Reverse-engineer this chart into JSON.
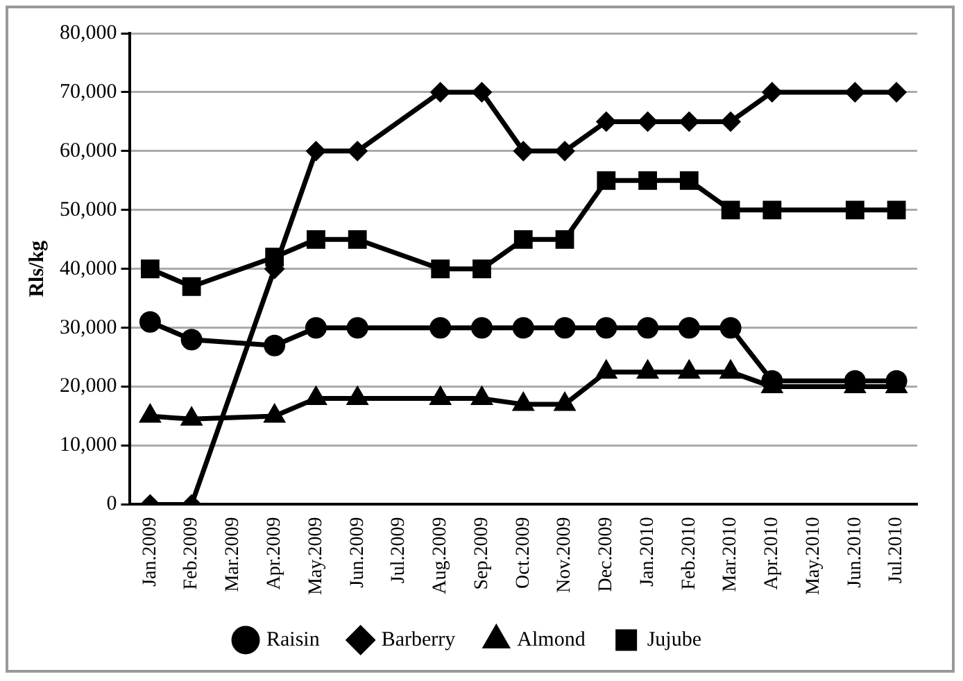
{
  "chart_data": {
    "type": "line",
    "ylabel": "Rls/kg",
    "categories": [
      "Jan.2009",
      "Feb.2009",
      "Mar.2009",
      "Apr.2009",
      "May.2009",
      "Jun.2009",
      "Jul.2009",
      "Aug.2009",
      "Sep.2009",
      "Oct.2009",
      "Nov.2009",
      "Dec.2009",
      "Jan.2010",
      "Feb.2010",
      "Mar.2010",
      "Apr.2010",
      "May.2010",
      "Jun.2010",
      "Jul.2010"
    ],
    "series": [
      {
        "name": "Raisin",
        "color": "#000000",
        "marker": "circle",
        "values": [
          31000,
          28000,
          null,
          27000,
          30000,
          30000,
          null,
          30000,
          30000,
          30000,
          30000,
          30000,
          30000,
          30000,
          30000,
          21000,
          null,
          21000,
          21000
        ]
      },
      {
        "name": "Barberry",
        "color": "#000000",
        "marker": "diamond",
        "values": [
          0,
          0,
          null,
          40000,
          60000,
          60000,
          null,
          70000,
          70000,
          60000,
          60000,
          65000,
          65000,
          65000,
          65000,
          70000,
          null,
          70000,
          70000
        ]
      },
      {
        "name": "Almond",
        "color": "#000000",
        "marker": "triangle",
        "values": [
          15000,
          14500,
          null,
          15000,
          18000,
          18000,
          null,
          18000,
          18000,
          17000,
          17000,
          22500,
          22500,
          22500,
          22500,
          20000,
          null,
          20000,
          20000
        ]
      },
      {
        "name": "Jujube",
        "color": "#000000",
        "marker": "square",
        "values": [
          40000,
          37000,
          null,
          42000,
          45000,
          45000,
          null,
          40000,
          40000,
          45000,
          45000,
          55000,
          55000,
          55000,
          50000,
          50000,
          null,
          50000,
          50000
        ]
      }
    ],
    "ylim": [
      0,
      80000
    ],
    "yticks": [
      0,
      {
        "value": 10000,
        "label": "10,000"
      },
      {
        "value": 20000,
        "label": "20,000"
      },
      {
        "value": 30000,
        "label": "30,000"
      },
      {
        "value": 40000,
        "label": "40,000"
      },
      {
        "value": 50000,
        "label": "50,000"
      },
      {
        "value": 60000,
        "label": "60,000"
      },
      {
        "value": 70000,
        "label": "70,000"
      },
      {
        "value": 80000,
        "label": "80,000"
      }
    ],
    "grid": "y",
    "legend": "bottom",
    "line_style": "solid"
  }
}
